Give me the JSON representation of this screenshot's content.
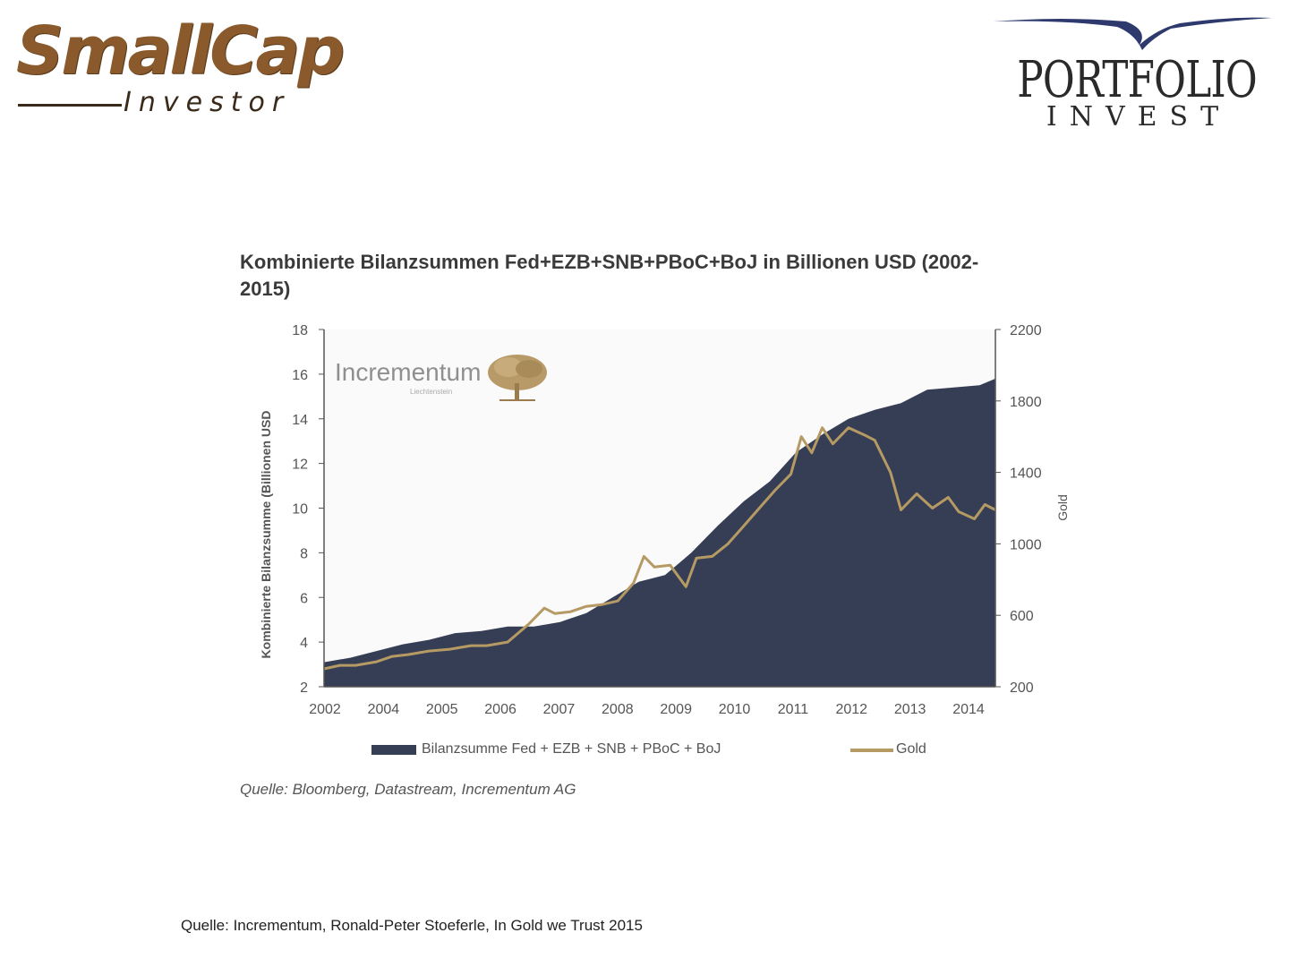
{
  "header": {
    "logo_left": {
      "main": "SmallCap",
      "sub": "Investor"
    },
    "logo_right": {
      "main": "PORTFOLIO",
      "sub": "INVEST"
    }
  },
  "chart_data": {
    "type": "area+line",
    "title": "Kombinierte Bilanzsummen Fed+EZB+SNB+PBoC+BoJ in Billionen USD (2002-2015)",
    "watermark": {
      "main": "Incrementum",
      "sub": "Liechtenstein"
    },
    "ylabel_left": "Kombinierte Bilanzsumme (Billionen USD",
    "ylabel_right": "Gold",
    "y_left": {
      "min": 2,
      "max": 18,
      "ticks": [
        2,
        4,
        6,
        8,
        10,
        12,
        14,
        16,
        18
      ]
    },
    "y_right": {
      "min": 200,
      "max": 2200,
      "ticks": [
        200,
        600,
        1000,
        1400,
        1800,
        2200
      ]
    },
    "x_axis": {
      "min": 2002.0,
      "max": 2014.8,
      "tick_labels": [
        "2002",
        "2004",
        "2005",
        "2006",
        "2007",
        "2008",
        "2009",
        "2010",
        "2011",
        "2012",
        "2013",
        "2014"
      ]
    },
    "series": [
      {
        "name": "Bilanzsumme Fed + EZB + SNB + PBoC + BoJ",
        "kind": "area",
        "color": "#363e55",
        "x": [
          2002.0,
          2002.5,
          2003.0,
          2003.5,
          2004.0,
          2004.5,
          2005.0,
          2005.5,
          2006.0,
          2006.5,
          2007.0,
          2007.5,
          2008.0,
          2008.5,
          2009.0,
          2009.5,
          2010.0,
          2010.5,
          2011.0,
          2011.5,
          2012.0,
          2012.5,
          2013.0,
          2013.5,
          2014.0,
          2014.5,
          2014.8
        ],
        "values": [
          3.1,
          3.3,
          3.6,
          3.9,
          4.1,
          4.4,
          4.5,
          4.7,
          4.7,
          4.9,
          5.3,
          6.0,
          6.7,
          7.0,
          8.0,
          9.2,
          10.3,
          11.2,
          12.5,
          13.3,
          14.0,
          14.4,
          14.7,
          15.3,
          15.4,
          15.5,
          15.8
        ]
      },
      {
        "name": "Gold",
        "kind": "line",
        "color": "#b59a63",
        "x": [
          2002.0,
          2002.3,
          2002.6,
          2003.0,
          2003.3,
          2003.6,
          2004.0,
          2004.4,
          2004.8,
          2005.1,
          2005.5,
          2005.9,
          2006.2,
          2006.4,
          2006.7,
          2007.0,
          2007.3,
          2007.6,
          2007.9,
          2008.1,
          2008.3,
          2008.6,
          2008.9,
          2009.1,
          2009.4,
          2009.7,
          2010.0,
          2010.3,
          2010.6,
          2010.9,
          2011.1,
          2011.3,
          2011.5,
          2011.7,
          2012.0,
          2012.3,
          2012.5,
          2012.8,
          2013.0,
          2013.3,
          2013.6,
          2013.9,
          2014.1,
          2014.4,
          2014.6,
          2014.8
        ],
        "values": [
          300,
          320,
          320,
          340,
          370,
          380,
          400,
          410,
          430,
          430,
          450,
          550,
          640,
          610,
          620,
          650,
          660,
          680,
          780,
          930,
          870,
          880,
          760,
          920,
          930,
          1000,
          1100,
          1200,
          1300,
          1390,
          1600,
          1510,
          1650,
          1560,
          1650,
          1610,
          1580,
          1400,
          1190,
          1280,
          1200,
          1260,
          1180,
          1140,
          1220,
          1190
        ]
      }
    ],
    "legend": [
      {
        "label": "Bilanzsumme Fed + EZB + SNB + PBoC + BoJ",
        "kind": "area"
      },
      {
        "label": "Gold",
        "kind": "line"
      }
    ],
    "source": "Quelle: Bloomberg, Datastream, Incrementum AG"
  },
  "footer": {
    "text": "Quelle: Incrementum, Ronald-Peter Stoeferle, In Gold we Trust 2015"
  }
}
